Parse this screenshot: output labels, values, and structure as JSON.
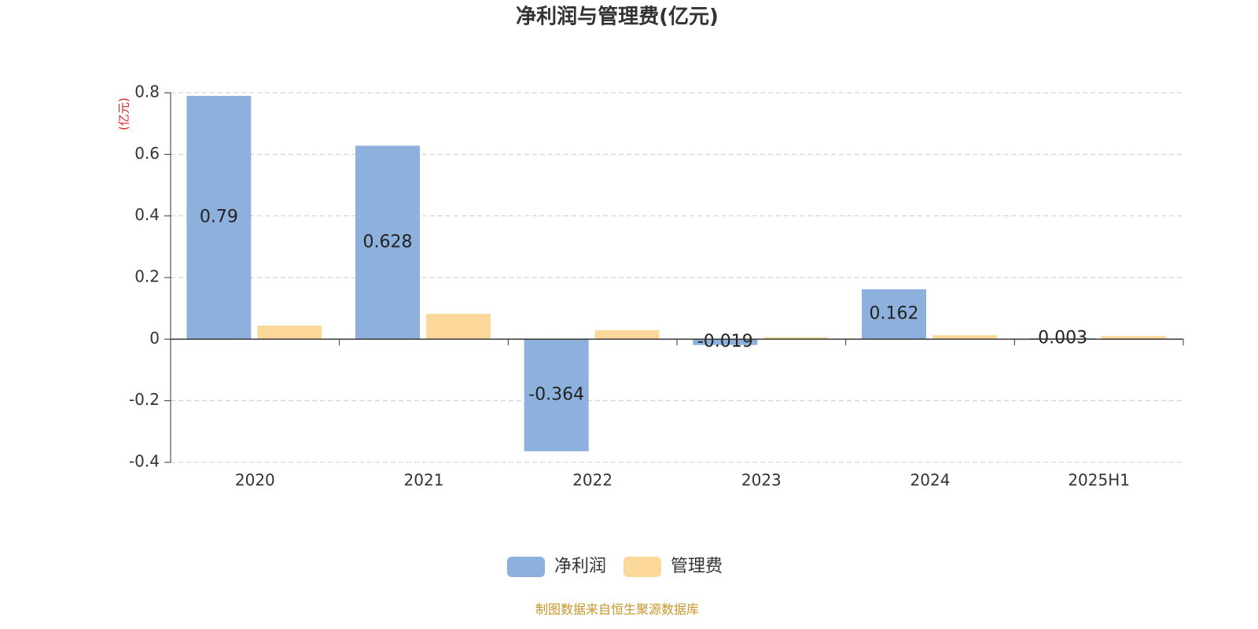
{
  "chart_data": {
    "type": "bar",
    "title": "净利润与管理费(亿元)",
    "y_label": "(亿元)",
    "categories": [
      "2020",
      "2021",
      "2022",
      "2023",
      "2024",
      "2025H1"
    ],
    "series": [
      {
        "name": "净利润",
        "color": "#8eb0dc",
        "values": [
          0.79,
          0.628,
          -0.364,
          -0.019,
          0.162,
          0.003
        ],
        "show_labels": true
      },
      {
        "name": "管理费",
        "color": "#fdd89b",
        "values": [
          0.044,
          0.082,
          0.029,
          0.006,
          0.013,
          0.01
        ],
        "show_labels": false
      }
    ],
    "ylim": [
      -0.4,
      0.8
    ],
    "yticks": [
      -0.4,
      -0.2,
      0,
      0.2,
      0.4,
      0.6,
      0.8
    ],
    "grid": true,
    "legend": "bottom",
    "source": "制图数据来自恒生聚源数据库"
  }
}
